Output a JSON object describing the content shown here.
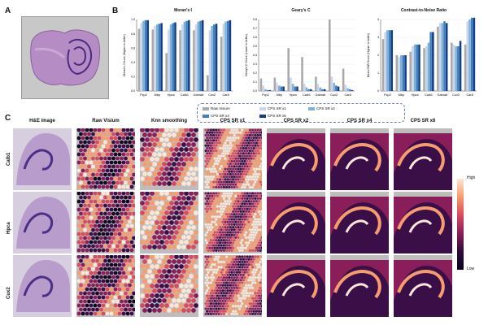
{
  "panels": {
    "a": "A",
    "b": "B",
    "c": "C"
  },
  "colors": {
    "raw": "#a9a9a9",
    "x1": "#cbd6ea",
    "x2": "#7fb0d8",
    "x4": "#3f7fbf",
    "x6": "#123f86"
  },
  "charts": [
    {
      "title": "Moran's I",
      "ylabel": "Moran's I Score (Higher is better)",
      "ylim": [
        0,
        1.0
      ],
      "yticks": [
        "0.0",
        "0.2",
        "0.4",
        "0.6",
        "0.8",
        "1.0"
      ]
    },
    {
      "title": "Geary's C",
      "ylabel": "Geary's C Score (Lower is better)",
      "ylim": [
        0,
        0.8
      ],
      "yticks": [
        "0.0",
        "0.1",
        "0.2",
        "0.3",
        "0.4",
        "0.5",
        "0.6",
        "0.7",
        "0.8"
      ]
    },
    {
      "title": "Contrast-to-Noise Ratio",
      "ylabel": "Mean CNR Score (Higher is better)",
      "ylim": [
        0,
        4.0
      ],
      "yticks": [
        "0",
        "1",
        "2",
        "3",
        "4"
      ]
    }
  ],
  "chart_data": [
    {
      "type": "bar",
      "title": "Moran's I",
      "categories": [
        "Pcp2",
        "Mbp",
        "Hpca",
        "Calb1",
        "Gabra6",
        "Cux2",
        "Car8"
      ],
      "ylim": [
        0,
        1.0
      ],
      "series": [
        {
          "name": "Raw Visium",
          "values": [
            0.87,
            0.86,
            0.53,
            0.85,
            0.85,
            0.22,
            0.76
          ]
        },
        {
          "name": "CPS SR x1",
          "values": [
            0.95,
            0.91,
            0.86,
            0.93,
            0.93,
            0.85,
            0.94
          ]
        },
        {
          "name": "CPS SR x2",
          "values": [
            0.98,
            0.93,
            0.93,
            0.97,
            0.97,
            0.91,
            0.97
          ]
        },
        {
          "name": "CPS SR x4",
          "values": [
            0.99,
            0.94,
            0.95,
            0.98,
            0.98,
            0.93,
            0.98
          ]
        },
        {
          "name": "CPS SR x6",
          "values": [
            0.99,
            0.95,
            0.96,
            0.99,
            0.99,
            0.94,
            0.99
          ]
        }
      ]
    },
    {
      "type": "bar",
      "title": "Geary's C",
      "categories": [
        "Pcp2",
        "Mbp",
        "Hpca",
        "Calb1",
        "Gabra6",
        "Cux2",
        "Car8"
      ],
      "ylim": [
        0,
        0.8
      ],
      "series": [
        {
          "name": "Raw Visium",
          "values": [
            0.14,
            0.15,
            0.48,
            0.38,
            0.16,
            0.8,
            0.25
          ]
        },
        {
          "name": "CPS SR x1",
          "values": [
            0.06,
            0.09,
            0.15,
            0.08,
            0.08,
            0.16,
            0.07
          ]
        },
        {
          "name": "CPS SR x2",
          "values": [
            0.02,
            0.06,
            0.08,
            0.04,
            0.04,
            0.09,
            0.03
          ]
        },
        {
          "name": "CPS SR x4",
          "values": [
            0.01,
            0.05,
            0.05,
            0.02,
            0.02,
            0.06,
            0.02
          ]
        },
        {
          "name": "CPS SR x6",
          "values": [
            0.01,
            0.05,
            0.05,
            0.02,
            0.02,
            0.05,
            0.01
          ]
        }
      ]
    },
    {
      "type": "bar",
      "title": "Contrast-to-Noise Ratio",
      "categories": [
        "Pcp2",
        "Mbp",
        "Hpca",
        "Calb1",
        "Gabra6",
        "Cux2",
        "Car8"
      ],
      "ylim": [
        0,
        4.0
      ],
      "series": [
        {
          "name": "Raw Visium",
          "values": [
            2.9,
            2.0,
            2.2,
            2.4,
            3.6,
            2.7,
            2.6
          ]
        },
        {
          "name": "CPS SR x1",
          "values": [
            3.3,
            1.9,
            2.5,
            2.5,
            3.8,
            2.6,
            3.9
          ]
        },
        {
          "name": "CPS SR x2",
          "values": [
            3.4,
            2.0,
            2.6,
            2.7,
            3.8,
            2.5,
            4.0
          ]
        },
        {
          "name": "CPS SR x4",
          "values": [
            3.4,
            2.0,
            2.6,
            3.3,
            3.9,
            2.5,
            4.1
          ]
        },
        {
          "name": "CPS SR x6",
          "values": [
            3.4,
            2.0,
            2.6,
            3.3,
            3.8,
            2.8,
            4.1
          ]
        }
      ]
    }
  ],
  "legend": {
    "items": [
      "Raw Visium",
      "CPS SR x1",
      "CPS SR x2",
      "CPS SR x4",
      "CPS SR x6"
    ]
  },
  "grid": {
    "columns": [
      "H&E image",
      "Raw Visium",
      "Knn smoothing",
      "CPS SR x1",
      "CPS SR x2",
      "CPS SR x4",
      "CPS SR x6"
    ],
    "rows": [
      "Calb1",
      "Hpca",
      "Cux2"
    ]
  },
  "colorbar": {
    "high": "High",
    "low": "Low"
  }
}
